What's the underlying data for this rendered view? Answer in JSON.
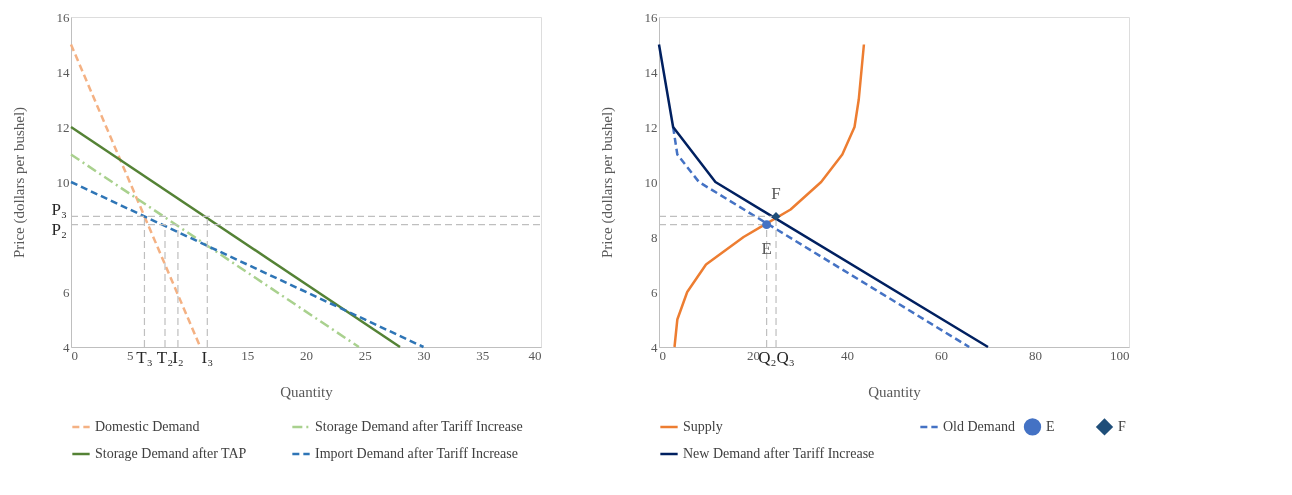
{
  "chart_data": [
    {
      "type": "line",
      "xlabel": "Quantity",
      "ylabel": "Price (dollars per bushel)",
      "xlim": [
        0,
        40
      ],
      "ylim": [
        4,
        16
      ],
      "xticks": [
        0,
        5,
        15,
        20,
        25,
        30,
        35,
        40
      ],
      "yticks": [
        4,
        6,
        10,
        12,
        14,
        16
      ],
      "grid": false,
      "legend": "bottom",
      "series": [
        {
          "name": "Domestic Demand",
          "color": "#f4b183",
          "line_style": "dashed",
          "x": [
            0,
            11
          ],
          "values": [
            15,
            4
          ]
        },
        {
          "name": "Storage Demand after Tariff Increase",
          "color": "#a9d18e",
          "line_style": "dashdot",
          "x": [
            0,
            24.5
          ],
          "values": [
            11,
            4
          ]
        },
        {
          "name": "Storage Demand after TAP",
          "color": "#548235",
          "line_style": "solid",
          "x": [
            0,
            28
          ],
          "values": [
            12,
            4
          ]
        },
        {
          "name": "Import Demand after Tariff Increase",
          "color": "#2e75b6",
          "line_style": "dashed",
          "x": [
            0,
            30
          ],
          "values": [
            10,
            4
          ]
        },
        {
          "color": "#bfbfbf",
          "line_style": "dashed",
          "x": [
            0,
            40
          ],
          "values": [
            8.75,
            8.75
          ]
        },
        {
          "color": "#bfbfbf",
          "line_style": "dashed",
          "x": [
            0,
            40
          ],
          "values": [
            8.45,
            8.45
          ]
        },
        {
          "color": "#bfbfbf",
          "line_style": "dashed",
          "x": [
            6.25,
            6.25
          ],
          "values": [
            4,
            8.75
          ]
        },
        {
          "color": "#bfbfbf",
          "line_style": "dashed",
          "x": [
            8.0,
            8.0
          ],
          "values": [
            4,
            8.45
          ]
        },
        {
          "color": "#bfbfbf",
          "line_style": "dashed",
          "x": [
            9.1,
            9.1
          ],
          "values": [
            4,
            8.45
          ]
        },
        {
          "color": "#bfbfbf",
          "line_style": "dashed",
          "x": [
            11.6,
            11.6
          ],
          "values": [
            4,
            8.75
          ]
        }
      ],
      "annotations": [
        {
          "text": "P₃",
          "x": 0,
          "y": 8.75
        },
        {
          "text": "P₂",
          "x": 0,
          "y": 8.45
        },
        {
          "text": "T₃",
          "x": 6.25,
          "y": 4
        },
        {
          "text": "T₂",
          "x": 8.0,
          "y": 4
        },
        {
          "text": "I₂",
          "x": 9.1,
          "y": 4
        },
        {
          "text": "I₃",
          "x": 11.6,
          "y": 4
        }
      ]
    },
    {
      "type": "line",
      "xlabel": "Quantity",
      "ylabel": "Price (dollars per bushel)",
      "xlim": [
        0,
        100
      ],
      "ylim": [
        4,
        16
      ],
      "xticks": [
        0,
        20,
        40,
        60,
        80,
        100
      ],
      "yticks": [
        4,
        6,
        8,
        10,
        12,
        14,
        16
      ],
      "grid": false,
      "legend": "bottom",
      "series": [
        {
          "name": "Supply",
          "color": "#ed7d31",
          "line_style": "solid",
          "x": [
            3.3,
            3.9,
            6,
            10,
            18,
            28,
            34.5,
            39,
            41.6,
            42.5,
            43.6
          ],
          "values": [
            4,
            5,
            6,
            7,
            8,
            9,
            10,
            11,
            12,
            13,
            15
          ]
        },
        {
          "name": "Old Demand",
          "color": "#4472c4",
          "line_style": "dashed",
          "x": [
            3,
            3.9,
            8.5,
            66
          ],
          "values": [
            12,
            11,
            10,
            4
          ]
        },
        {
          "name": "New Demand after Tariff Increase",
          "color": "#002060",
          "line_style": "solid",
          "x": [
            0,
            3,
            12,
            70
          ],
          "values": [
            15,
            12,
            10,
            4
          ]
        },
        {
          "name": "E",
          "type": "scatter",
          "marker": "circle",
          "color": "#4472c4",
          "x": [
            22.9
          ],
          "values": [
            8.45
          ]
        },
        {
          "name": "F",
          "type": "scatter",
          "marker": "diamond",
          "color": "#1f4e79",
          "x": [
            24.9
          ],
          "values": [
            8.75
          ]
        },
        {
          "color": "#bfbfbf",
          "line_style": "dashed",
          "x": [
            0,
            24.9
          ],
          "values": [
            8.75,
            8.75
          ]
        },
        {
          "color": "#bfbfbf",
          "line_style": "dashed",
          "x": [
            0,
            22.9
          ],
          "values": [
            8.45,
            8.45
          ]
        },
        {
          "color": "#bfbfbf",
          "line_style": "dashed",
          "x": [
            22.9,
            22.9
          ],
          "values": [
            4,
            8.45
          ]
        },
        {
          "color": "#bfbfbf",
          "line_style": "dashed",
          "x": [
            24.9,
            24.9
          ],
          "values": [
            4,
            8.75
          ]
        }
      ],
      "annotations": [
        {
          "text": "F",
          "x": 24.9,
          "y": 8.75
        },
        {
          "text": "E",
          "x": 22.9,
          "y": 8.45
        },
        {
          "text": "Q₂Q₃",
          "x": 25,
          "y": 4
        }
      ]
    }
  ]
}
